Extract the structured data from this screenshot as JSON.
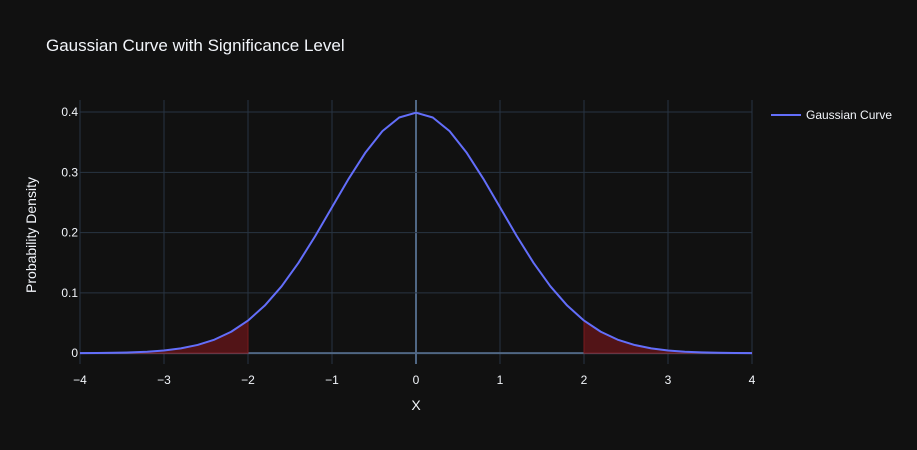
{
  "chart_data": {
    "type": "line",
    "title": "Gaussian Curve with Significance Level",
    "xlabel": "X",
    "ylabel": "Probability Density",
    "xlim": [
      -4,
      4
    ],
    "ylim": [
      -0.018,
      0.42
    ],
    "x_ticks": [
      -4,
      -3,
      -2,
      -1,
      0,
      1,
      2,
      3,
      4
    ],
    "x_tick_labels": [
      "−4",
      "−3",
      "−2",
      "−1",
      "0",
      "1",
      "2",
      "3",
      "4"
    ],
    "y_ticks": [
      0,
      0.1,
      0.2,
      0.3,
      0.4
    ],
    "y_tick_labels": [
      "0",
      "0.1",
      "0.2",
      "0.3",
      "0.4"
    ],
    "grid": true,
    "legend_position": "top-right",
    "series": [
      {
        "name": "Gaussian Curve",
        "color": "#636efa",
        "x": [
          -4.0,
          -3.8,
          -3.6,
          -3.4,
          -3.2,
          -3.0,
          -2.8,
          -2.6,
          -2.4,
          -2.2,
          -2.0,
          -1.8,
          -1.6,
          -1.4,
          -1.2,
          -1.0,
          -0.8,
          -0.6,
          -0.4,
          -0.2,
          0.0,
          0.2,
          0.4,
          0.6,
          0.8,
          1.0,
          1.2,
          1.4,
          1.6,
          1.8,
          2.0,
          2.2,
          2.4,
          2.6,
          2.8,
          3.0,
          3.2,
          3.4,
          3.6,
          3.8,
          4.0
        ],
        "y": [
          0.0001,
          0.0003,
          0.0006,
          0.0012,
          0.0024,
          0.0044,
          0.0079,
          0.0136,
          0.0224,
          0.0355,
          0.054,
          0.079,
          0.1109,
          0.1497,
          0.1942,
          0.242,
          0.2897,
          0.3332,
          0.3683,
          0.391,
          0.3989,
          0.391,
          0.3683,
          0.3332,
          0.2897,
          0.242,
          0.1942,
          0.1497,
          0.1109,
          0.079,
          0.054,
          0.0355,
          0.0224,
          0.0136,
          0.0079,
          0.0044,
          0.0024,
          0.0012,
          0.0006,
          0.0003,
          0.0001
        ]
      }
    ],
    "shaded_regions": [
      {
        "x_from": -4,
        "x_to": -2,
        "color": "#5a1518"
      },
      {
        "x_from": 2,
        "x_to": 4,
        "color": "#5a1518"
      }
    ],
    "colors": {
      "background": "#111111",
      "grid": "#283442",
      "zero_line": "#506784",
      "text": "#f2f5fa"
    }
  }
}
